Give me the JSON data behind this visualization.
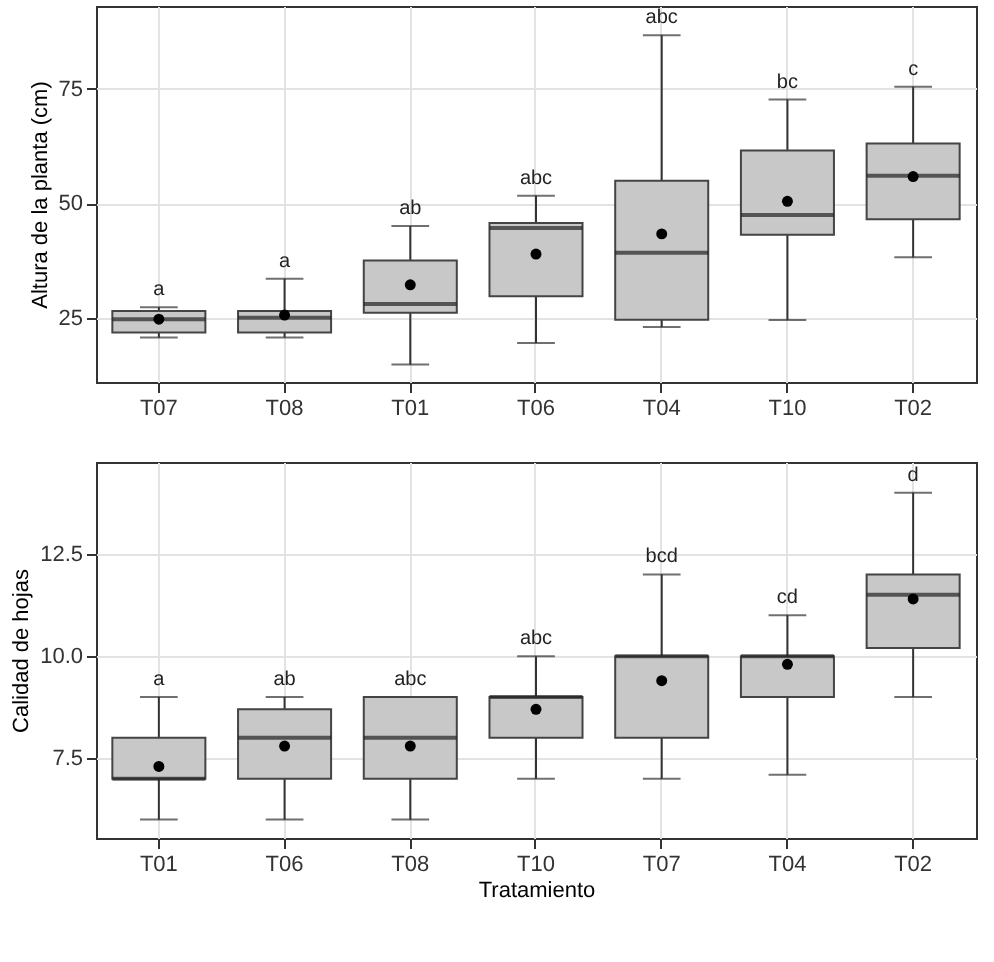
{
  "chart_data": [
    {
      "type": "box",
      "ylabel": "Altura de la planta (cm)",
      "categories": [
        "T07",
        "T08",
        "T01",
        "T06",
        "T04",
        "T10",
        "T02"
      ],
      "boxes": [
        {
          "low": 20.7,
          "q1": 21.8,
          "median": 24.7,
          "q3": 26.5,
          "high": 27.3,
          "mean": 24.7
        },
        {
          "low": 20.7,
          "q1": 21.8,
          "median": 25,
          "q3": 26.5,
          "high": 33.5,
          "mean": 25.6
        },
        {
          "low": 14.8,
          "q1": 26.1,
          "median": 28,
          "q3": 37.5,
          "high": 45,
          "mean": 32.2
        },
        {
          "low": 19.5,
          "q1": 29.7,
          "median": 44.6,
          "q3": 45.7,
          "high": 51.6,
          "mean": 38.9
        },
        {
          "low": 23,
          "q1": 24.6,
          "median": 39.2,
          "q3": 54.9,
          "high": 86.6,
          "mean": 43.3
        },
        {
          "low": 24.5,
          "q1": 43.1,
          "median": 47.4,
          "q3": 61.5,
          "high": 72.6,
          "mean": 50.4
        },
        {
          "low": 38.2,
          "q1": 46.5,
          "median": 56,
          "q3": 63,
          "high": 75.4,
          "mean": 55.8
        }
      ],
      "ylim": [
        11,
        93
      ],
      "yticks": [
        25,
        50,
        75
      ],
      "grid": true,
      "annotations": [
        {
          "text": "a",
          "x": "T07",
          "y": 27.3
        },
        {
          "text": "a",
          "x": "T08",
          "y": 33.5
        },
        {
          "text": "ab",
          "x": "T01",
          "y": 45
        },
        {
          "text": "abc",
          "x": "T06",
          "y": 51.6
        },
        {
          "text": "abc",
          "x": "T04",
          "y": 86.6
        },
        {
          "text": "bc",
          "x": "T10",
          "y": 72.6
        },
        {
          "text": "c",
          "x": "T02",
          "y": 75.4
        }
      ]
    },
    {
      "type": "box",
      "ylabel": "Calidad de hojas",
      "xlabel": "Tratamiento",
      "categories": [
        "T01",
        "T06",
        "T08",
        "T10",
        "T07",
        "T04",
        "T02"
      ],
      "boxes": [
        {
          "low": 6,
          "q1": 7,
          "median": 7,
          "q3": 8,
          "high": 9,
          "mean": 7.3
        },
        {
          "low": 6,
          "q1": 7,
          "median": 8,
          "q3": 8.7,
          "high": 9,
          "mean": 7.8
        },
        {
          "low": 6,
          "q1": 7,
          "median": 8,
          "q3": 9,
          "high": 9,
          "mean": 7.8
        },
        {
          "low": 7,
          "q1": 8,
          "median": 9,
          "q3": 9,
          "high": 10,
          "mean": 8.7
        },
        {
          "low": 7,
          "q1": 8,
          "median": 10,
          "q3": 10,
          "high": 12,
          "mean": 9.4
        },
        {
          "low": 7.1,
          "q1": 9,
          "median": 10,
          "q3": 10,
          "high": 11,
          "mean": 9.8
        },
        {
          "low": 9,
          "q1": 10.2,
          "median": 11.5,
          "q3": 12,
          "high": 14,
          "mean": 11.4
        }
      ],
      "ylim": [
        5.55,
        14.75
      ],
      "yticks": [
        7.5,
        {
          "value": 10,
          "label": "10.0"
        },
        12.5
      ],
      "grid": true,
      "annotations": [
        {
          "text": "a",
          "x": "T01",
          "y": 9
        },
        {
          "text": "ab",
          "x": "T06",
          "y": 9
        },
        {
          "text": "abc",
          "x": "T08",
          "y": 9
        },
        {
          "text": "abc",
          "x": "T10",
          "y": 10
        },
        {
          "text": "bcd",
          "x": "T07",
          "y": 12
        },
        {
          "text": "cd",
          "x": "T04",
          "y": 11
        },
        {
          "text": "d",
          "x": "T02",
          "y": 14
        }
      ]
    }
  ]
}
